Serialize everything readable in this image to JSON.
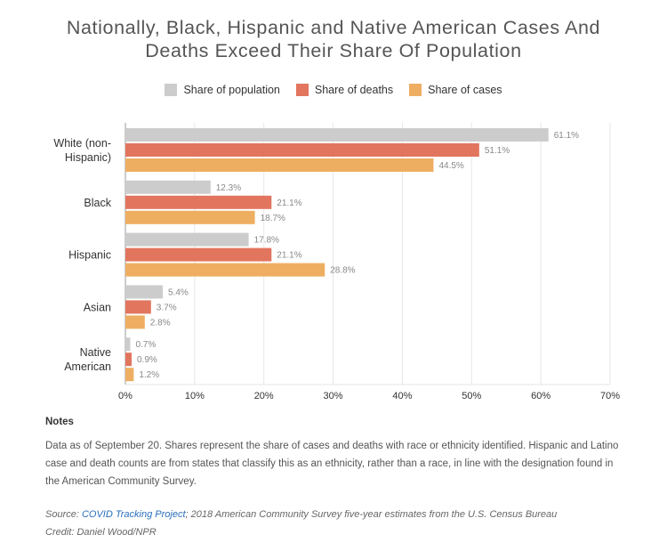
{
  "chart_data": {
    "type": "bar",
    "orientation": "horizontal",
    "title_lines": [
      "Nationally, Black, Hispanic and Native American Cases And",
      "Deaths Exceed Their Share Of Population"
    ],
    "categories": [
      {
        "lines": [
          "White (non-",
          "Hispanic)"
        ]
      },
      {
        "lines": [
          "Black"
        ]
      },
      {
        "lines": [
          "Hispanic"
        ]
      },
      {
        "lines": [
          "Asian"
        ]
      },
      {
        "lines": [
          "Native",
          "American"
        ]
      }
    ],
    "series": [
      {
        "name": "Share of population",
        "color": "#cccccc",
        "values": [
          61.1,
          12.3,
          17.8,
          5.4,
          0.7
        ]
      },
      {
        "name": "Share of deaths",
        "color": "#e2755e",
        "values": [
          51.1,
          21.1,
          21.1,
          3.7,
          0.9
        ]
      },
      {
        "name": "Share of cases",
        "color": "#eeae62",
        "values": [
          44.5,
          18.7,
          28.8,
          2.8,
          1.2
        ]
      }
    ],
    "xlim": [
      0,
      70
    ],
    "xticks": [
      0,
      10,
      20,
      30,
      40,
      50,
      60,
      70
    ],
    "xtick_labels": [
      "0%",
      "10%",
      "20%",
      "30%",
      "40%",
      "50%",
      "60%",
      "70%"
    ],
    "value_suffix": "%",
    "grid": true,
    "legend_position": "top-center"
  },
  "notes": {
    "title": "Notes",
    "body": "Data as of September 20. Shares represent the share of cases and deaths with race or ethnicity identified. Hispanic and Latino case and death counts are from states that classify this as an ethnicity, rather than a race, in line with the designation found in the American Community Survey."
  },
  "source": {
    "prefix": "Source: ",
    "link_text": "COVID Tracking Project",
    "rest": "; 2018 American Community Survey five-year estimates from the U.S. Census Bureau"
  },
  "credit": "Credit: Daniel Wood/NPR",
  "colors": {
    "link": "#2a6ebb",
    "grid": "#e6e6e6",
    "axis": "#999999"
  }
}
